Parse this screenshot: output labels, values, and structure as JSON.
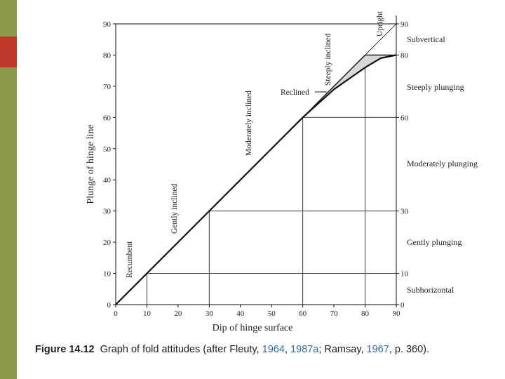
{
  "chart_data": {
    "type": "line",
    "xlabel": "Dip of hinge surface",
    "ylabel": "Plunge of hinge line",
    "xlim": [
      0,
      90
    ],
    "ylim": [
      0,
      90
    ],
    "x_ticks": [
      "0",
      "10",
      "20",
      "30",
      "40",
      "50",
      "60",
      "70",
      "80",
      "90"
    ],
    "y_ticks": [
      "0",
      "10",
      "20",
      "30",
      "40",
      "50",
      "60",
      "70",
      "80",
      "90"
    ],
    "right_ticks": [
      "0",
      "10",
      "30",
      "60",
      "80",
      "90"
    ],
    "series": [
      {
        "name": "upper boundary",
        "x": [
          0,
          60,
          80,
          90
        ],
        "y": [
          0,
          60,
          80,
          80
        ]
      },
      {
        "name": "lower boundary",
        "x": [
          0,
          60,
          70,
          80,
          85,
          90
        ],
        "y": [
          0,
          60,
          69,
          76,
          79,
          80
        ]
      }
    ],
    "guide_lines": [
      {
        "at": 10,
        "label_dip": 10
      },
      {
        "at": 30,
        "label_dip": 30
      },
      {
        "at": 60,
        "label_dip": 60
      },
      {
        "at": 80,
        "label_dip": 80
      }
    ],
    "dip_classes": [
      {
        "label": "Recumbent",
        "at_dip": 4
      },
      {
        "label": "Gently inclined",
        "at_dip": 19
      },
      {
        "label": "Moderately inclined",
        "at_dip": 43
      },
      {
        "label": "Steeply inclined",
        "at_dip": 68
      },
      {
        "label": "Reclined",
        "at_dip": 58
      },
      {
        "label": "Upright",
        "at_dip": 84
      }
    ],
    "plunge_classes": [
      {
        "label": "Subvertical",
        "at_plunge": 85
      },
      {
        "label": "Steeply plunging",
        "at_plunge": 70
      },
      {
        "label": "Moderately plunging",
        "at_plunge": 45
      },
      {
        "label": "Gently plunging",
        "at_plunge": 20
      },
      {
        "label": "Subhorizontal",
        "at_plunge": 5
      }
    ],
    "region_fill": "#d8d8d8",
    "line_color": "#111111"
  },
  "caption": {
    "figure": "Figure 14.12",
    "text1": "Graph of fold attitudes (after Fleuty, ",
    "ref1": "1964",
    "sep1": ", ",
    "ref2": "1987a",
    "text2": "; Ramsay, ",
    "ref3": "1967",
    "text3": ", p. 360)."
  },
  "colors": {
    "left_strip": "#8a9a4a",
    "left_accent": "#c0392b",
    "ref_link": "#2e6ea8"
  }
}
